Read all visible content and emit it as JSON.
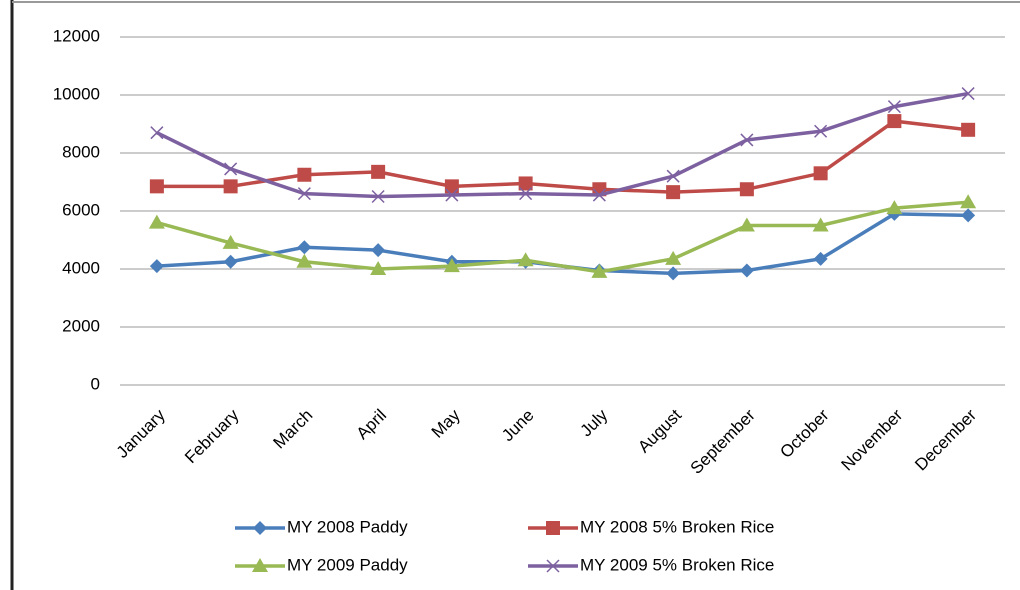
{
  "chart_data": {
    "type": "line",
    "categories": [
      "January",
      "February",
      "March",
      "April",
      "May",
      "June",
      "July",
      "August",
      "September",
      "October",
      "November",
      "December"
    ],
    "series": [
      {
        "name": "MY 2008 Paddy",
        "color": "#4a7ebb",
        "marker": "diamond",
        "values": [
          4100,
          4250,
          4750,
          4650,
          4250,
          4250,
          3950,
          3850,
          3950,
          4350,
          5900,
          5850
        ]
      },
      {
        "name": "MY 2008 5% Broken Rice",
        "color": "#be4b48",
        "marker": "square",
        "values": [
          6850,
          6850,
          7250,
          7350,
          6850,
          6950,
          6750,
          6650,
          6750,
          7300,
          9100,
          8800
        ]
      },
      {
        "name": "MY 2009 Paddy",
        "color": "#98b954",
        "marker": "triangle",
        "values": [
          5600,
          4900,
          4250,
          4000,
          4100,
          4300,
          3900,
          4350,
          5500,
          5500,
          6100,
          6300
        ]
      },
      {
        "name": "MY 2009 5% Broken Rice",
        "color": "#7d60a0",
        "marker": "x",
        "values": [
          8700,
          7450,
          6600,
          6500,
          6550,
          6600,
          6550,
          7200,
          8450,
          8750,
          9600,
          10050
        ]
      }
    ],
    "ylim": [
      0,
      12000
    ],
    "yticks": [
      0,
      2000,
      4000,
      6000,
      8000,
      10000,
      12000
    ],
    "grid": true,
    "legend": "bottom"
  }
}
